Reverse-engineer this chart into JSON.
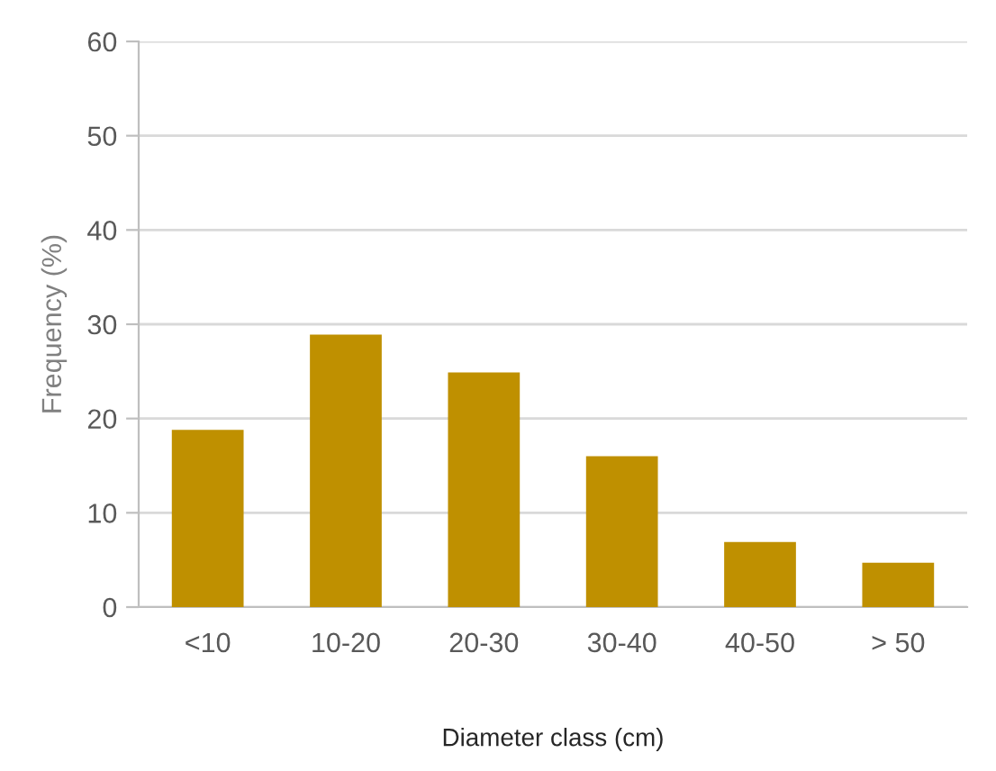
{
  "chart_data": {
    "type": "bar",
    "xlabel": "Diameter class (cm)",
    "ylabel": "Frequency (%)",
    "categories": [
      "<10",
      "10-20",
      "20-30",
      "30-40",
      "40-50",
      "> 50"
    ],
    "values": [
      18.8,
      28.9,
      24.9,
      16.0,
      6.9,
      4.7
    ],
    "color": "#bf9000",
    "ylim": [
      0,
      60
    ],
    "yticks": [
      0,
      10,
      20,
      30,
      40,
      50,
      60
    ],
    "grid": "y"
  }
}
